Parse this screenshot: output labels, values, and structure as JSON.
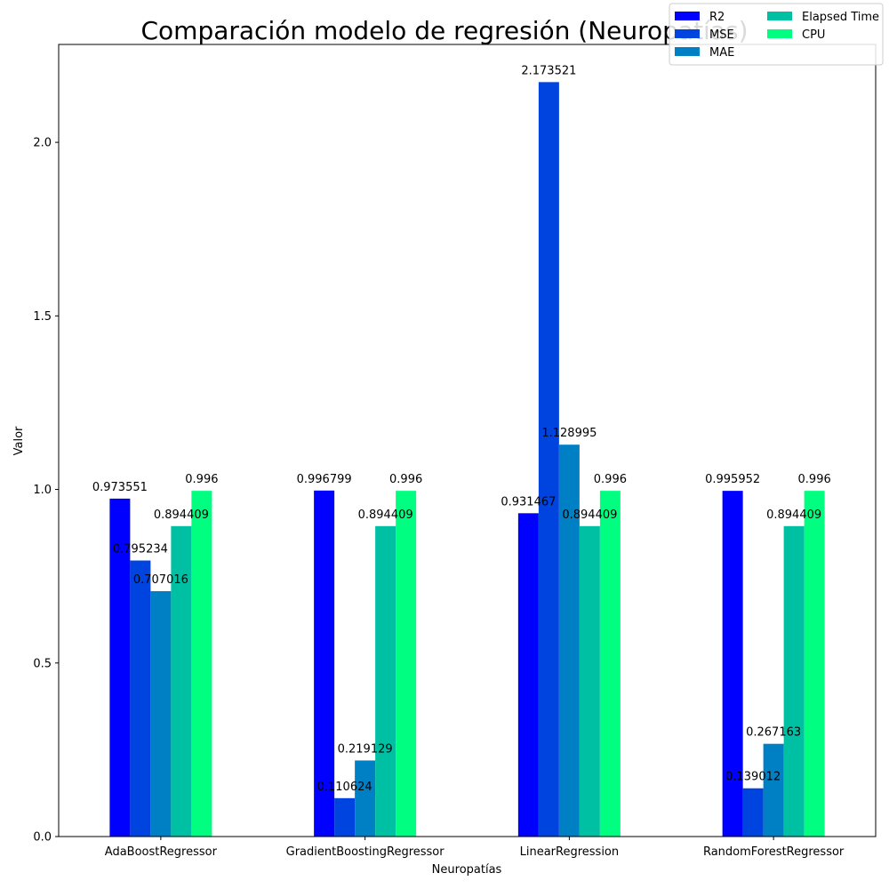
{
  "chart_data": {
    "type": "bar",
    "title": "Comparación modelo de regresión (Neuropatías)",
    "xlabel": "Neuropatías",
    "ylabel": "Valor",
    "ylim": [
      0,
      2.282
    ],
    "yticks": [
      0.0,
      0.5,
      1.0,
      1.5,
      2.0
    ],
    "ytick_labels": [
      "0.0",
      "0.5",
      "1.0",
      "1.5",
      "2.0"
    ],
    "grid": false,
    "legend": {
      "placement": "top-right",
      "columns": 2
    },
    "categories": [
      "AdaBoostRegressor",
      "GradientBoostingRegressor",
      "LinearRegression",
      "RandomForestRegressor"
    ],
    "series": [
      {
        "name": "R2",
        "color": "#0000ff",
        "values": [
          0.973551,
          0.996799,
          0.931467,
          0.995952
        ],
        "labels": [
          "0.973551",
          "0.996799",
          "0.931467",
          "0.995952"
        ]
      },
      {
        "name": "MSE",
        "color": "#0044e0",
        "values": [
          0.795234,
          0.110624,
          2.173521,
          0.139012
        ],
        "labels": [
          "0.795234",
          "0.110624",
          "2.173521",
          "0.139012"
        ]
      },
      {
        "name": "MAE",
        "color": "#0080c4",
        "values": [
          0.707016,
          0.219129,
          1.128995,
          0.267163
        ],
        "labels": [
          "0.707016",
          "0.219129",
          "1.128995",
          "0.267163"
        ]
      },
      {
        "name": "Elapsed Time",
        "color": "#00c0a4",
        "values": [
          0.894409,
          0.894409,
          0.894409,
          0.894409
        ],
        "labels": [
          "0.894409",
          "0.894409",
          "0.894409",
          "0.894409"
        ]
      },
      {
        "name": "CPU",
        "color": "#00ff80",
        "values": [
          0.996,
          0.996,
          0.996,
          0.996
        ],
        "labels": [
          "0.996",
          "0.996",
          "0.996",
          "0.996"
        ]
      }
    ]
  }
}
